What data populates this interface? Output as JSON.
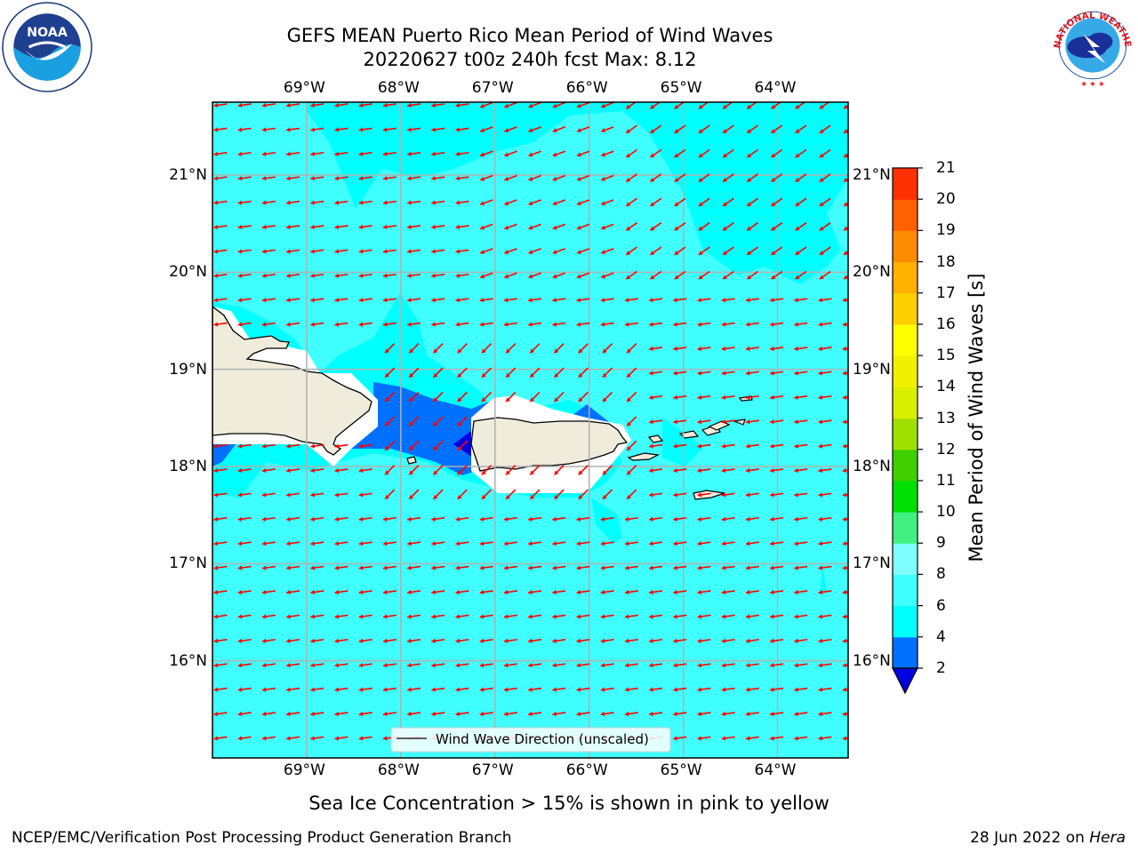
{
  "title": {
    "line1": "GEFS MEAN Puerto Rico Mean Period of Wind Waves",
    "line2": "20220627 t00z 240h fcst   Max: 8.12"
  },
  "logos": {
    "left": {
      "name": "noaa-logo",
      "text": "NOAA",
      "ring": "NATIONAL OCEANIC AND ATMOSPHERIC ADMINISTRATION · U.S. DEPARTMENT OF COMMERCE"
    },
    "right": {
      "name": "nws-logo",
      "ring": "NATIONAL WEATHER SERVICE"
    }
  },
  "map": {
    "lon_ticks": [
      "69°W",
      "68°W",
      "67°W",
      "66°W",
      "65°W",
      "64°W"
    ],
    "lat_ticks": [
      "21°N",
      "20°N",
      "19°N",
      "18°N",
      "17°N",
      "16°N"
    ],
    "lon_range": [
      -70.0,
      -63.25
    ],
    "lat_range": [
      15.0,
      21.75
    ],
    "legend_text": "Wind Wave Direction (unscaled)",
    "legend_placement": "bottom-center",
    "arrow_color": "#ff0000",
    "ocean_color": "#40ffff",
    "land_color": "#efecdc",
    "gridlines": true
  },
  "colorbar": {
    "label": "Mean Period of Wind Waves [s]",
    "ticks": [
      "21",
      "20",
      "19",
      "18",
      "17",
      "16",
      "15",
      "14",
      "13",
      "12",
      "11",
      "10",
      "9",
      "8",
      "6",
      "4",
      "2"
    ],
    "levels": [
      2,
      4,
      6,
      8,
      9,
      10,
      11,
      12,
      13,
      14,
      15,
      16,
      17,
      18,
      19,
      20,
      21
    ],
    "colors": [
      "#0070ff",
      "#00ffff",
      "#40ffff",
      "#80ffff",
      "#40f080",
      "#00e000",
      "#40d000",
      "#a0e000",
      "#d8f000",
      "#f0f000",
      "#ffff00",
      "#ffd000",
      "#ffb000",
      "#ff8c00",
      "#ff6000",
      "#ff3000",
      "#ff0000"
    ],
    "under_color": "#0000e0",
    "extend": "min"
  },
  "footer": {
    "note": "Sea Ice Concentration > 15% is shown in pink to yellow",
    "left": "NCEP/EMC/Verification Post Processing Product Generation Branch",
    "right_prefix": "28 Jun 2022 on ",
    "right_host": "Hera"
  }
}
